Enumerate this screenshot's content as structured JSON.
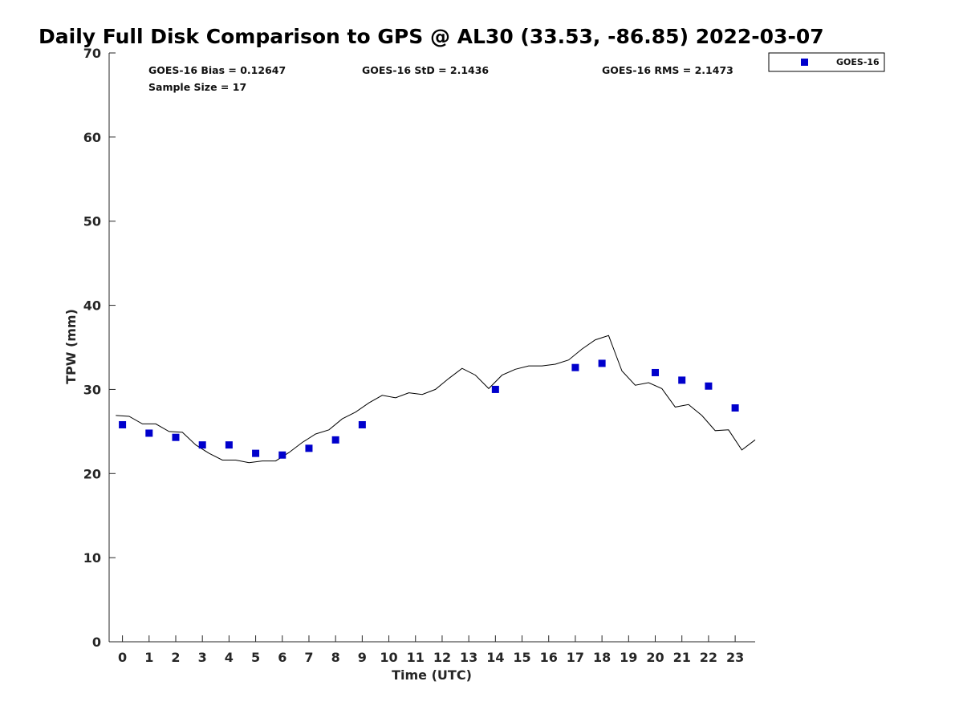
{
  "chart_data": {
    "type": "scatter",
    "title": "Daily Full Disk Comparison to GPS @ AL30 (33.53, -86.85) 2022-03-07",
    "xlabel": "Time (UTC)",
    "ylabel": "TPW (mm)",
    "xlim": [
      -0.5,
      23.75
    ],
    "ylim": [
      0,
      70
    ],
    "x_ticks": [
      "0",
      "1",
      "2",
      "3",
      "4",
      "5",
      "6",
      "7",
      "8",
      "9",
      "10",
      "11",
      "12",
      "13",
      "14",
      "15",
      "16",
      "17",
      "18",
      "19",
      "20",
      "21",
      "22",
      "23"
    ],
    "y_ticks": [
      "0",
      "10",
      "20",
      "30",
      "40",
      "50",
      "60",
      "70"
    ],
    "stats": {
      "bias": "GOES-16 Bias = 0.12647",
      "std": "GOES-16 StD = 2.1436",
      "rms": "GOES-16 RMS = 2.1473",
      "sample": "Sample Size = 17"
    },
    "legend": {
      "position": "top-right",
      "label": "GOES-16"
    },
    "colors": {
      "goes": "#0000cc",
      "gps_line": "#000000"
    },
    "series": [
      {
        "name": "GOES-16",
        "x": [
          0,
          1,
          2,
          3,
          4,
          5,
          6,
          7,
          8,
          9,
          14,
          17,
          18,
          20,
          21,
          22,
          23
        ],
        "values": [
          25.8,
          24.8,
          24.3,
          23.4,
          23.4,
          22.4,
          22.2,
          23.0,
          24.0,
          25.8,
          30.0,
          32.6,
          33.1,
          32.0,
          31.1,
          30.4,
          27.8
        ]
      },
      {
        "name": "GPS",
        "x": [
          -0.25,
          0.25,
          0.75,
          1.25,
          1.75,
          2.25,
          2.75,
          3.25,
          3.75,
          4.25,
          4.75,
          5.25,
          5.75,
          6.25,
          6.75,
          7.25,
          7.75,
          8.25,
          8.75,
          9.25,
          9.75,
          10.25,
          10.75,
          11.25,
          11.75,
          12.25,
          12.75,
          13.25,
          13.75,
          14.25,
          14.75,
          15.25,
          15.75,
          16.25,
          16.75,
          17.25,
          17.75,
          18.25,
          18.75,
          19.25,
          19.75,
          20.25,
          20.75,
          21.25,
          21.75,
          22.25,
          22.75,
          23.25,
          23.75
        ],
        "values": [
          26.9,
          26.8,
          25.9,
          25.9,
          25.0,
          24.9,
          23.4,
          22.4,
          21.6,
          21.6,
          21.3,
          21.5,
          21.5,
          22.5,
          23.7,
          24.7,
          25.2,
          26.5,
          27.3,
          28.4,
          29.3,
          29.0,
          29.6,
          29.4,
          30.0,
          31.3,
          32.5,
          31.7,
          30.1,
          31.7,
          32.4,
          32.8,
          32.8,
          33.0,
          33.5,
          34.8,
          35.9,
          36.4,
          32.2,
          30.5,
          30.8,
          30.1,
          27.9,
          28.2,
          26.9,
          25.1,
          25.2,
          22.8,
          24.0
        ]
      }
    ]
  }
}
